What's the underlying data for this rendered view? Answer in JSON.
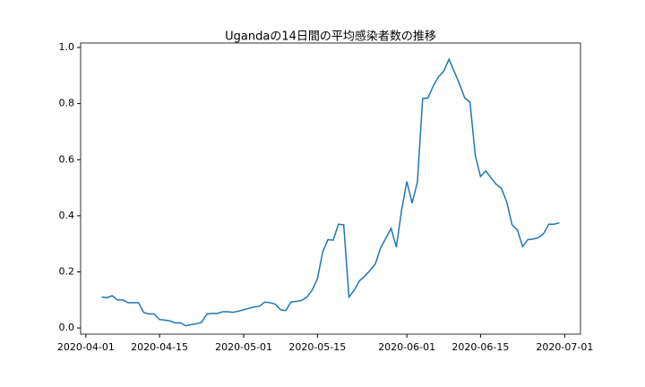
{
  "chart_data": {
    "type": "line",
    "title": "Ugandaの14日間の平均感染者数の推移",
    "x": [
      "2020-04-04",
      "2020-04-05",
      "2020-04-06",
      "2020-04-07",
      "2020-04-08",
      "2020-04-09",
      "2020-04-10",
      "2020-04-11",
      "2020-04-12",
      "2020-04-13",
      "2020-04-14",
      "2020-04-15",
      "2020-04-16",
      "2020-04-17",
      "2020-04-18",
      "2020-04-19",
      "2020-04-20",
      "2020-04-21",
      "2020-04-22",
      "2020-04-23",
      "2020-04-24",
      "2020-04-25",
      "2020-04-26",
      "2020-04-27",
      "2020-04-28",
      "2020-04-29",
      "2020-04-30",
      "2020-05-01",
      "2020-05-02",
      "2020-05-03",
      "2020-05-04",
      "2020-05-05",
      "2020-05-06",
      "2020-05-07",
      "2020-05-08",
      "2020-05-09",
      "2020-05-10",
      "2020-05-11",
      "2020-05-12",
      "2020-05-13",
      "2020-05-14",
      "2020-05-15",
      "2020-05-16",
      "2020-05-17",
      "2020-05-18",
      "2020-05-19",
      "2020-05-20",
      "2020-05-21",
      "2020-05-22",
      "2020-05-23",
      "2020-05-24",
      "2020-05-25",
      "2020-05-26",
      "2020-05-27",
      "2020-05-28",
      "2020-05-29",
      "2020-05-30",
      "2020-05-31",
      "2020-06-01",
      "2020-06-02",
      "2020-06-03",
      "2020-06-04",
      "2020-06-05",
      "2020-06-06",
      "2020-06-07",
      "2020-06-08",
      "2020-06-09",
      "2020-06-10",
      "2020-06-11",
      "2020-06-12",
      "2020-06-13",
      "2020-06-14",
      "2020-06-15",
      "2020-06-16",
      "2020-06-17",
      "2020-06-18",
      "2020-06-19",
      "2020-06-20",
      "2020-06-21",
      "2020-06-22",
      "2020-06-23",
      "2020-06-24",
      "2020-06-25",
      "2020-06-26",
      "2020-06-27",
      "2020-06-28",
      "2020-06-29",
      "2020-06-30"
    ],
    "series": [
      {
        "color": "#1f77b4",
        "values": [
          0.11,
          0.108,
          0.115,
          0.1,
          0.1,
          0.09,
          0.09,
          0.09,
          0.055,
          0.05,
          0.05,
          0.03,
          0.028,
          0.025,
          0.018,
          0.018,
          0.008,
          0.012,
          0.015,
          0.02,
          0.05,
          0.052,
          0.052,
          0.058,
          0.058,
          0.056,
          0.06,
          0.065,
          0.07,
          0.075,
          0.078,
          0.092,
          0.09,
          0.085,
          0.065,
          0.062,
          0.093,
          0.095,
          0.098,
          0.11,
          0.135,
          0.175,
          0.27,
          0.315,
          0.313,
          0.37,
          0.368,
          0.11,
          0.135,
          0.168,
          0.185,
          0.205,
          0.228,
          0.285,
          0.32,
          0.355,
          0.288,
          0.42,
          0.522,
          0.445,
          0.52,
          0.818,
          0.82,
          0.862,
          0.895,
          0.915,
          0.958,
          0.915,
          0.87,
          0.82,
          0.805,
          0.615,
          0.54,
          0.56,
          0.535,
          0.512,
          0.497,
          0.448,
          0.368,
          0.35,
          0.29,
          0.315,
          0.317,
          0.322,
          0.337,
          0.37,
          0.37,
          0.375
        ]
      }
    ],
    "xlim": [
      "2020-03-31",
      "2020-07-04"
    ],
    "xticks": [
      "2020-04-01",
      "2020-04-15",
      "2020-05-01",
      "2020-05-15",
      "2020-06-01",
      "2020-06-15",
      "2020-07-01"
    ],
    "ylim": [
      -0.022,
      1.016
    ],
    "yticks": [
      {
        "value": 0,
        "label": "0.0"
      },
      0.2,
      0.4,
      0.6,
      0.8,
      {
        "value": 1,
        "label": "1.0"
      }
    ]
  }
}
